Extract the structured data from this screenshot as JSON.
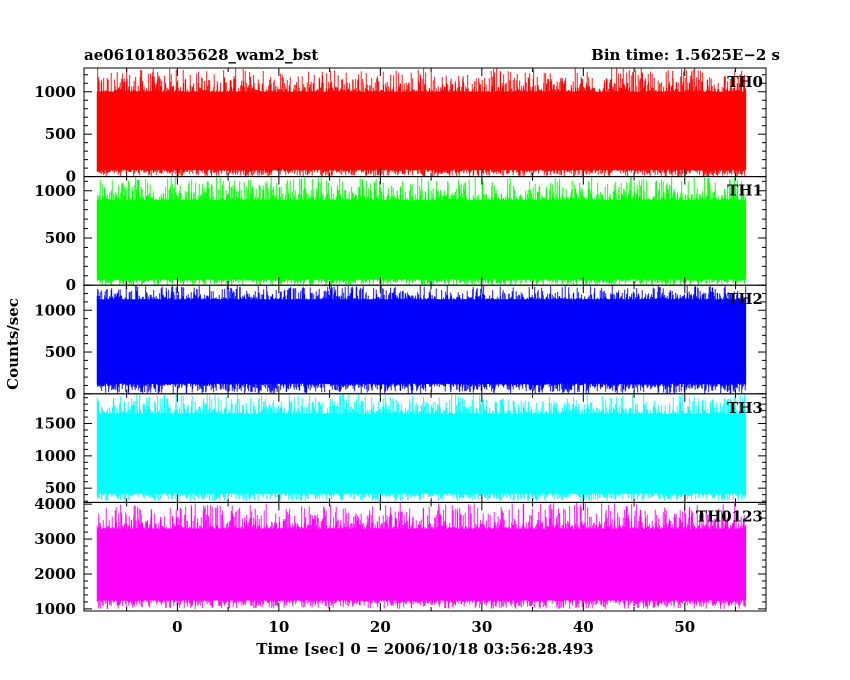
{
  "header": {
    "title": "ae061018035628_wam2_bst",
    "bin_time": "Bin time: 1.5625E−2 s"
  },
  "chart_data": {
    "type": "line",
    "title": "ae061018035628_wam2_bst",
    "subtitle": "Bin time: 1.5625E−2 s",
    "xlabel": "Time [sec] 0 = 2006/10/18 03:56:28.493",
    "ylabel": "Counts/sec",
    "xlim": [
      -9.2,
      58
    ],
    "x_range_data": [
      -7.9,
      56.0
    ],
    "bin_time_s": 0.015625,
    "x_ticks": [
      0,
      10,
      20,
      30,
      40,
      50
    ],
    "grid": false,
    "panels": [
      {
        "name": "TH0",
        "color": "#ff0000",
        "ylim": [
          0,
          1280
        ],
        "y_ticks": [
          0,
          500,
          1000
        ],
        "typical_low": 80,
        "typical_high": 1000,
        "typical_min": 0,
        "typical_max": 1280
      },
      {
        "name": "TH1",
        "color": "#00ff00",
        "ylim": [
          0,
          1150
        ],
        "y_ticks": [
          0,
          500,
          1000
        ],
        "typical_low": 60,
        "typical_high": 900,
        "typical_min": 0,
        "typical_max": 1150
      },
      {
        "name": "TH2",
        "color": "#0000ff",
        "ylim": [
          0,
          1300
        ],
        "y_ticks": [
          0,
          500,
          1000
        ],
        "typical_low": 120,
        "typical_high": 1130,
        "typical_min": 0,
        "typical_max": 1300
      },
      {
        "name": "TH3",
        "color": "#00ffff",
        "ylim": [
          280,
          1960
        ],
        "y_ticks": [
          500,
          1000,
          1500
        ],
        "typical_low": 420,
        "typical_high": 1650,
        "typical_min": 300,
        "typical_max": 1960
      },
      {
        "name": "TH0123",
        "color": "#ff00ff",
        "ylim": [
          940,
          4050
        ],
        "y_ticks": [
          1000,
          2000,
          3000,
          4000
        ],
        "typical_low": 1250,
        "typical_high": 3300,
        "typical_min": 1000,
        "typical_max": 4050
      }
    ]
  }
}
